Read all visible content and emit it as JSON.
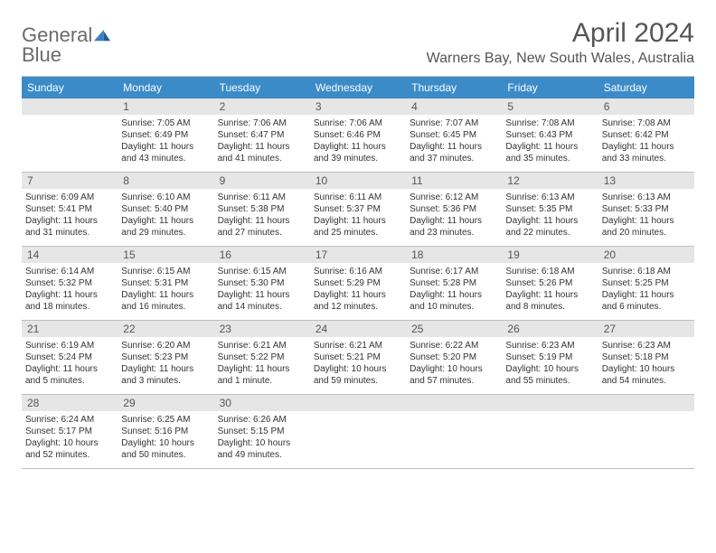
{
  "logo": {
    "text1": "General",
    "text2": "Blue"
  },
  "header": {
    "month_title": "April 2024",
    "location": "Warners Bay, New South Wales, Australia"
  },
  "days_of_week": [
    "Sunday",
    "Monday",
    "Tuesday",
    "Wednesday",
    "Thursday",
    "Friday",
    "Saturday"
  ],
  "colors": {
    "header_bg": "#3b8bc9",
    "header_text": "#ffffff",
    "daynum_bg": "#e6e6e6",
    "border": "#bfbfbf",
    "text": "#333333",
    "title_text": "#555555"
  },
  "weeks": [
    {
      "daynums": [
        "",
        "1",
        "2",
        "3",
        "4",
        "5",
        "6"
      ],
      "cells": [
        [],
        [
          "Sunrise: 7:05 AM",
          "Sunset: 6:49 PM",
          "Daylight: 11 hours and 43 minutes."
        ],
        [
          "Sunrise: 7:06 AM",
          "Sunset: 6:47 PM",
          "Daylight: 11 hours and 41 minutes."
        ],
        [
          "Sunrise: 7:06 AM",
          "Sunset: 6:46 PM",
          "Daylight: 11 hours and 39 minutes."
        ],
        [
          "Sunrise: 7:07 AM",
          "Sunset: 6:45 PM",
          "Daylight: 11 hours and 37 minutes."
        ],
        [
          "Sunrise: 7:08 AM",
          "Sunset: 6:43 PM",
          "Daylight: 11 hours and 35 minutes."
        ],
        [
          "Sunrise: 7:08 AM",
          "Sunset: 6:42 PM",
          "Daylight: 11 hours and 33 minutes."
        ]
      ]
    },
    {
      "daynums": [
        "7",
        "8",
        "9",
        "10",
        "11",
        "12",
        "13"
      ],
      "cells": [
        [
          "Sunrise: 6:09 AM",
          "Sunset: 5:41 PM",
          "Daylight: 11 hours and 31 minutes."
        ],
        [
          "Sunrise: 6:10 AM",
          "Sunset: 5:40 PM",
          "Daylight: 11 hours and 29 minutes."
        ],
        [
          "Sunrise: 6:11 AM",
          "Sunset: 5:38 PM",
          "Daylight: 11 hours and 27 minutes."
        ],
        [
          "Sunrise: 6:11 AM",
          "Sunset: 5:37 PM",
          "Daylight: 11 hours and 25 minutes."
        ],
        [
          "Sunrise: 6:12 AM",
          "Sunset: 5:36 PM",
          "Daylight: 11 hours and 23 minutes."
        ],
        [
          "Sunrise: 6:13 AM",
          "Sunset: 5:35 PM",
          "Daylight: 11 hours and 22 minutes."
        ],
        [
          "Sunrise: 6:13 AM",
          "Sunset: 5:33 PM",
          "Daylight: 11 hours and 20 minutes."
        ]
      ]
    },
    {
      "daynums": [
        "14",
        "15",
        "16",
        "17",
        "18",
        "19",
        "20"
      ],
      "cells": [
        [
          "Sunrise: 6:14 AM",
          "Sunset: 5:32 PM",
          "Daylight: 11 hours and 18 minutes."
        ],
        [
          "Sunrise: 6:15 AM",
          "Sunset: 5:31 PM",
          "Daylight: 11 hours and 16 minutes."
        ],
        [
          "Sunrise: 6:15 AM",
          "Sunset: 5:30 PM",
          "Daylight: 11 hours and 14 minutes."
        ],
        [
          "Sunrise: 6:16 AM",
          "Sunset: 5:29 PM",
          "Daylight: 11 hours and 12 minutes."
        ],
        [
          "Sunrise: 6:17 AM",
          "Sunset: 5:28 PM",
          "Daylight: 11 hours and 10 minutes."
        ],
        [
          "Sunrise: 6:18 AM",
          "Sunset: 5:26 PM",
          "Daylight: 11 hours and 8 minutes."
        ],
        [
          "Sunrise: 6:18 AM",
          "Sunset: 5:25 PM",
          "Daylight: 11 hours and 6 minutes."
        ]
      ]
    },
    {
      "daynums": [
        "21",
        "22",
        "23",
        "24",
        "25",
        "26",
        "27"
      ],
      "cells": [
        [
          "Sunrise: 6:19 AM",
          "Sunset: 5:24 PM",
          "Daylight: 11 hours and 5 minutes."
        ],
        [
          "Sunrise: 6:20 AM",
          "Sunset: 5:23 PM",
          "Daylight: 11 hours and 3 minutes."
        ],
        [
          "Sunrise: 6:21 AM",
          "Sunset: 5:22 PM",
          "Daylight: 11 hours and 1 minute."
        ],
        [
          "Sunrise: 6:21 AM",
          "Sunset: 5:21 PM",
          "Daylight: 10 hours and 59 minutes."
        ],
        [
          "Sunrise: 6:22 AM",
          "Sunset: 5:20 PM",
          "Daylight: 10 hours and 57 minutes."
        ],
        [
          "Sunrise: 6:23 AM",
          "Sunset: 5:19 PM",
          "Daylight: 10 hours and 55 minutes."
        ],
        [
          "Sunrise: 6:23 AM",
          "Sunset: 5:18 PM",
          "Daylight: 10 hours and 54 minutes."
        ]
      ]
    },
    {
      "daynums": [
        "28",
        "29",
        "30",
        "",
        "",
        "",
        ""
      ],
      "cells": [
        [
          "Sunrise: 6:24 AM",
          "Sunset: 5:17 PM",
          "Daylight: 10 hours and 52 minutes."
        ],
        [
          "Sunrise: 6:25 AM",
          "Sunset: 5:16 PM",
          "Daylight: 10 hours and 50 minutes."
        ],
        [
          "Sunrise: 6:26 AM",
          "Sunset: 5:15 PM",
          "Daylight: 10 hours and 49 minutes."
        ],
        [],
        [],
        [],
        []
      ]
    }
  ]
}
